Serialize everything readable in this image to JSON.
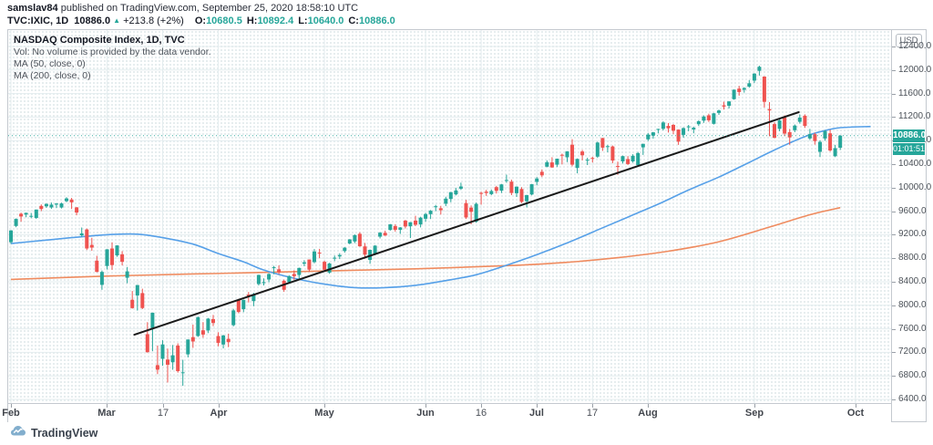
{
  "header": {
    "author": "samslav84",
    "published_text": "published on TradingView.com, September 25, 2020 18:58:10 UTC",
    "symbol_text": "TVC:IXIC, 1D",
    "last_price": "10886.0",
    "up_arrow": "▲",
    "change_text": "+213.8 (+2%)",
    "ohlc": [
      {
        "label": "O:",
        "value": "10680.5"
      },
      {
        "label": "H:",
        "value": "10892.4"
      },
      {
        "label": "L:",
        "value": "10640.0"
      },
      {
        "label": "C:",
        "value": "10886.0"
      }
    ]
  },
  "legend": {
    "title": "NASDAQ Composite Index, 1D, TVC",
    "volume_note": "Vol: No volume is provided by the data vendor.",
    "ma_fast": "MA (50, close, 0)",
    "ma_slow": "MA (200, close, 0)"
  },
  "price_axis": {
    "currency": "USD",
    "levels": [
      12400,
      12000,
      11600,
      11200,
      10800,
      10400,
      10000,
      9600,
      9200,
      8800,
      8400,
      8000,
      7600,
      7200,
      6800,
      6400
    ],
    "price_badge": "10886.0",
    "countdown_badge": "01:01:51"
  },
  "time_axis": {
    "ticks": [
      {
        "label": "Feb",
        "index": 0,
        "major": true
      },
      {
        "label": "Mar",
        "index": 19,
        "major": true
      },
      {
        "label": "17",
        "index": 30,
        "major": false
      },
      {
        "label": "Apr",
        "index": 41,
        "major": true
      },
      {
        "label": "May",
        "index": 62,
        "major": true
      },
      {
        "label": "Jun",
        "index": 82,
        "major": true
      },
      {
        "label": "16",
        "index": 93,
        "major": false
      },
      {
        "label": "Jul",
        "index": 104,
        "major": true
      },
      {
        "label": "17",
        "index": 115,
        "major": false
      },
      {
        "label": "Aug",
        "index": 126,
        "major": true
      },
      {
        "label": "Sep",
        "index": 147,
        "major": true
      },
      {
        "label": "Oct",
        "index": 167,
        "major": true
      }
    ]
  },
  "footer": {
    "brand": "TradingView"
  },
  "colors": {
    "up": "#26a69a",
    "down": "#ef5350",
    "ma50": "#56a0e8",
    "ma200": "#ef8b5f",
    "trendline": "#1a1a1a",
    "accent": "#26a69a",
    "grid": "#e4edef"
  },
  "chart_data": {
    "type": "candlestick",
    "title": "NASDAQ Composite Index, 1D, TVC",
    "date_range": "2020-02-03 to 2020-09-25, daily bars",
    "ylim": [
      6400,
      12400
    ],
    "grid": true,
    "current_price": 10886.0,
    "candles_ohlc": [
      [
        9073,
        9278,
        9046,
        9273
      ],
      [
        9348,
        9478,
        9327,
        9468
      ],
      [
        9556,
        9575,
        9422,
        9509
      ],
      [
        9542,
        9575,
        9496,
        9572
      ],
      [
        9510,
        9571,
        9480,
        9521
      ],
      [
        9486,
        9628,
        9468,
        9628
      ],
      [
        9690,
        9714,
        9601,
        9638
      ],
      [
        9682,
        9730,
        9658,
        9726
      ],
      [
        9663,
        9748,
        9640,
        9711
      ],
      [
        9713,
        9738,
        9653,
        9731
      ],
      [
        9663,
        9745,
        9646,
        9732
      ],
      [
        9770,
        9838,
        9752,
        9817
      ],
      [
        9799,
        9827,
        9637,
        9751
      ],
      [
        9665,
        9672,
        9531,
        9577
      ],
      [
        9188,
        9322,
        9166,
        9221
      ],
      [
        9290,
        9305,
        8940,
        8966
      ],
      [
        9026,
        9148,
        8927,
        8981
      ],
      [
        8759,
        8842,
        8562,
        8567
      ],
      [
        8347,
        8592,
        8264,
        8567
      ],
      [
        8668,
        8953,
        8609,
        8952
      ],
      [
        8966,
        9070,
        8603,
        8684
      ],
      [
        8847,
        9020,
        8825,
        9018
      ],
      [
        8866,
        8921,
        8677,
        8739
      ],
      [
        8468,
        8651,
        8375,
        8576
      ],
      [
        8094,
        8244,
        7943,
        7951
      ],
      [
        8166,
        8347,
        7910,
        8344
      ],
      [
        8207,
        8282,
        7935,
        7952
      ],
      [
        7508,
        7713,
        7195,
        7202
      ],
      [
        7612,
        7875,
        7219,
        7875
      ],
      [
        6983,
        7316,
        6829,
        6905
      ],
      [
        7090,
        7406,
        6973,
        7335
      ],
      [
        7078,
        7263,
        6687,
        6990
      ],
      [
        7032,
        7325,
        6904,
        7151
      ],
      [
        7316,
        7354,
        6854,
        6880
      ],
      [
        6848,
        7074,
        6631,
        6861
      ],
      [
        7165,
        7418,
        7115,
        7418
      ],
      [
        7459,
        7671,
        7276,
        7384
      ],
      [
        7477,
        7809,
        7462,
        7797
      ],
      [
        7575,
        7715,
        7448,
        7502
      ],
      [
        7573,
        7784,
        7527,
        7774
      ],
      [
        7766,
        7836,
        7647,
        7700
      ],
      [
        7477,
        7541,
        7302,
        7361
      ],
      [
        7333,
        7497,
        7266,
        7487
      ],
      [
        7429,
        7518,
        7288,
        7373
      ],
      [
        7662,
        7939,
        7642,
        7913
      ],
      [
        8093,
        8109,
        7865,
        7887
      ],
      [
        7933,
        8097,
        7884,
        8091
      ],
      [
        8182,
        8227,
        8048,
        8154
      ],
      [
        8071,
        8213,
        7985,
        8192
      ],
      [
        8361,
        8521,
        8336,
        8516
      ],
      [
        8394,
        8458,
        8338,
        8394
      ],
      [
        8439,
        8544,
        8391,
        8532
      ],
      [
        8639,
        8670,
        8527,
        8650
      ],
      [
        8612,
        8679,
        8527,
        8561
      ],
      [
        8417,
        8437,
        8229,
        8263
      ],
      [
        8396,
        8512,
        8368,
        8495
      ],
      [
        8534,
        8596,
        8432,
        8495
      ],
      [
        8514,
        8641,
        8458,
        8635
      ],
      [
        8707,
        8767,
        8663,
        8730
      ],
      [
        8779,
        8780,
        8570,
        8607
      ],
      [
        8735,
        8957,
        8715,
        8915
      ],
      [
        8896,
        8960,
        8801,
        8890
      ],
      [
        8740,
        8760,
        8575,
        8605
      ],
      [
        8556,
        8722,
        8537,
        8711
      ],
      [
        8793,
        8846,
        8752,
        8809
      ],
      [
        8830,
        8885,
        8786,
        8854
      ],
      [
        8923,
        8990,
        8894,
        8980
      ],
      [
        9051,
        9126,
        9037,
        9121
      ],
      [
        9085,
        9204,
        9056,
        9192
      ],
      [
        9216,
        9243,
        8995,
        9003
      ],
      [
        9002,
        9060,
        8793,
        8863
      ],
      [
        8773,
        8949,
        8705,
        8943
      ],
      [
        8877,
        9023,
        8850,
        9014
      ],
      [
        9168,
        9247,
        9136,
        9234
      ],
      [
        9232,
        9269,
        9180,
        9185
      ],
      [
        9280,
        9382,
        9269,
        9376
      ],
      [
        9348,
        9378,
        9252,
        9284
      ],
      [
        9283,
        9328,
        9214,
        9324
      ],
      [
        9441,
        9451,
        9305,
        9340
      ],
      [
        9343,
        9414,
        9144,
        9412
      ],
      [
        9440,
        9523,
        9345,
        9369
      ],
      [
        9375,
        9505,
        9324,
        9490
      ],
      [
        9471,
        9571,
        9421,
        9552
      ],
      [
        9550,
        9620,
        9467,
        9608
      ],
      [
        9668,
        9707,
        9602,
        9683
      ],
      [
        9649,
        9691,
        9542,
        9616
      ],
      [
        9727,
        9846,
        9685,
        9814
      ],
      [
        9808,
        9927,
        9752,
        9924
      ],
      [
        9886,
        9996,
        9868,
        9954
      ],
      [
        9983,
        10086,
        9962,
        10020
      ],
      [
        9738,
        9794,
        9468,
        9493
      ],
      [
        9661,
        9697,
        9376,
        9589
      ],
      [
        9420,
        9747,
        9403,
        9726
      ],
      [
        9912,
        9931,
        9711,
        9895
      ],
      [
        9932,
        9963,
        9860,
        9910
      ],
      [
        9890,
        9968,
        9873,
        9943
      ],
      [
        10010,
        10031,
        9901,
        9946
      ],
      [
        9949,
        10064,
        9909,
        10056
      ],
      [
        10131,
        10221,
        10084,
        10131
      ],
      [
        10102,
        10137,
        9873,
        9909
      ],
      [
        9905,
        10022,
        9842,
        10017
      ],
      [
        9976,
        10010,
        9740,
        9757
      ],
      [
        9768,
        9877,
        9663,
        9874
      ],
      [
        9884,
        10063,
        9870,
        10059
      ],
      [
        10099,
        10182,
        10041,
        10155
      ],
      [
        10269,
        10310,
        10180,
        10208
      ],
      [
        10357,
        10463,
        10345,
        10433
      ],
      [
        10430,
        10518,
        10337,
        10344
      ],
      [
        10390,
        10495,
        10351,
        10493
      ],
      [
        10560,
        10579,
        10396,
        10548
      ],
      [
        10517,
        10622,
        10436,
        10617
      ],
      [
        10730,
        10825,
        10362,
        10390
      ],
      [
        10335,
        10497,
        10243,
        10488
      ],
      [
        10615,
        10642,
        10464,
        10550
      ],
      [
        10468,
        10509,
        10385,
        10474
      ],
      [
        10505,
        10527,
        10428,
        10503
      ],
      [
        10527,
        10782,
        10505,
        10767
      ],
      [
        10843,
        10846,
        10625,
        10680
      ],
      [
        10700,
        10728,
        10602,
        10706
      ],
      [
        10701,
        10717,
        10417,
        10461
      ],
      [
        10368,
        10442,
        10217,
        10363
      ],
      [
        10446,
        10545,
        10412,
        10536
      ],
      [
        10486,
        10536,
        10386,
        10402
      ],
      [
        10447,
        10569,
        10425,
        10543
      ],
      [
        10383,
        10608,
        10365,
        10587
      ],
      [
        10684,
        10748,
        10557,
        10745
      ],
      [
        10822,
        10928,
        10792,
        10903
      ],
      [
        10884,
        10948,
        10833,
        10941
      ],
      [
        10993,
        11002,
        10924,
        10998
      ],
      [
        10999,
        11130,
        10973,
        11108
      ],
      [
        11050,
        11098,
        10937,
        11010
      ],
      [
        11067,
        11082,
        10910,
        10968
      ],
      [
        10987,
        10990,
        10727,
        10783
      ],
      [
        10897,
        11027,
        10850,
        11012
      ],
      [
        11040,
        11066,
        10959,
        11042
      ],
      [
        10990,
        11038,
        10924,
        11019
      ],
      [
        11079,
        11144,
        11051,
        11129
      ],
      [
        11141,
        11230,
        11101,
        11210
      ],
      [
        11229,
        11257,
        11117,
        11146
      ],
      [
        11086,
        11272,
        11073,
        11264
      ],
      [
        11270,
        11326,
        11237,
        11311
      ],
      [
        11400,
        11462,
        11329,
        11379
      ],
      [
        11391,
        11468,
        11345,
        11466
      ],
      [
        11504,
        11671,
        11495,
        11665
      ],
      [
        11683,
        11730,
        11565,
        11625
      ],
      [
        11666,
        11708,
        11616,
        11695
      ],
      [
        11718,
        11829,
        11697,
        11775
      ],
      [
        11820,
        11945,
        11779,
        11939
      ],
      [
        11986,
        12074,
        11905,
        12056
      ],
      [
        11888,
        11894,
        11361,
        11458
      ],
      [
        11335,
        11455,
        10875,
        11313
      ],
      [
        11080,
        11113,
        10837,
        10847
      ],
      [
        10999,
        11176,
        10960,
        11142
      ],
      [
        11194,
        11229,
        10876,
        10920
      ],
      [
        10944,
        10999,
        10729,
        10854
      ],
      [
        10977,
        11074,
        10943,
        11056
      ],
      [
        11119,
        11245,
        11089,
        11190
      ],
      [
        11224,
        11246,
        11015,
        11050
      ],
      [
        10837,
        10999,
        10812,
        10910
      ],
      [
        10909,
        10934,
        10732,
        10793
      ],
      [
        10610,
        10805,
        10520,
        10779
      ],
      [
        10836,
        10980,
        10800,
        10963
      ],
      [
        10924,
        10984,
        10612,
        10632
      ],
      [
        10536,
        10728,
        10519,
        10672
      ],
      [
        10680.5,
        10892.4,
        10640,
        10886
      ]
    ],
    "ma50_points": [
      [
        0,
        9050
      ],
      [
        6,
        9100
      ],
      [
        12,
        9150
      ],
      [
        19,
        9200
      ],
      [
        25,
        9210
      ],
      [
        30,
        9150
      ],
      [
        36,
        9040
      ],
      [
        41,
        8880
      ],
      [
        46,
        8740
      ],
      [
        50,
        8600
      ],
      [
        56,
        8460
      ],
      [
        62,
        8360
      ],
      [
        68,
        8300
      ],
      [
        74,
        8300
      ],
      [
        80,
        8340
      ],
      [
        86,
        8420
      ],
      [
        92,
        8520
      ],
      [
        98,
        8680
      ],
      [
        104,
        8860
      ],
      [
        110,
        9060
      ],
      [
        116,
        9280
      ],
      [
        122,
        9500
      ],
      [
        128,
        9720
      ],
      [
        134,
        9960
      ],
      [
        140,
        10180
      ],
      [
        146,
        10430
      ],
      [
        150,
        10600
      ],
      [
        154,
        10760
      ],
      [
        158,
        10900
      ],
      [
        161,
        10970
      ],
      [
        164,
        11020
      ],
      [
        170,
        11040
      ]
    ],
    "ma200_points": [
      [
        0,
        8440
      ],
      [
        20,
        8500
      ],
      [
        40,
        8540
      ],
      [
        60,
        8580
      ],
      [
        80,
        8620
      ],
      [
        100,
        8680
      ],
      [
        110,
        8730
      ],
      [
        120,
        8810
      ],
      [
        130,
        8920
      ],
      [
        140,
        9080
      ],
      [
        150,
        9330
      ],
      [
        158,
        9540
      ],
      [
        164,
        9660
      ]
    ],
    "trendline": {
      "from": {
        "index": 24.4,
        "price": 7500
      },
      "to": {
        "index": 155.8,
        "price": 11284
      }
    }
  }
}
